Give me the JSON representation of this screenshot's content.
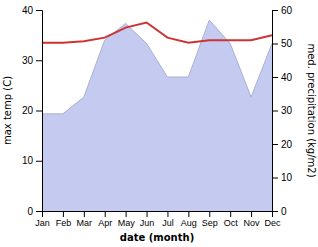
{
  "chart_data": {
    "type": "line",
    "xlabel": "date (month)",
    "ylabel": "max temp (C)",
    "y2label": "med. precipitation (kg/m2)",
    "categories": [
      "Jan",
      "Feb",
      "Mar",
      "Apr",
      "May",
      "Jun",
      "Jul",
      "Aug",
      "Sep",
      "Oct",
      "Nov",
      "Dec"
    ],
    "series": [
      {
        "type": "area",
        "axis": "y2",
        "color": "#c5cbf0",
        "values": [
          29.0,
          29.0,
          34.0,
          51.0,
          56.0,
          50.0,
          40.0,
          40.0,
          57.0,
          50.0,
          34.0,
          50.0
        ]
      },
      {
        "type": "line",
        "color": "#cc3333",
        "values": [
          33.5,
          33.5,
          33.8,
          34.5,
          36.5,
          37.5,
          34.5,
          33.5,
          34.0,
          34.0,
          34.0,
          35.0
        ]
      }
    ],
    "ylim": [
      0,
      40
    ],
    "yticks": [
      0,
      10,
      20,
      30,
      40
    ],
    "y2lim": [
      0,
      60
    ],
    "y2ticks": [
      0,
      10,
      20,
      30,
      40,
      50,
      60
    ],
    "grid": false
  }
}
